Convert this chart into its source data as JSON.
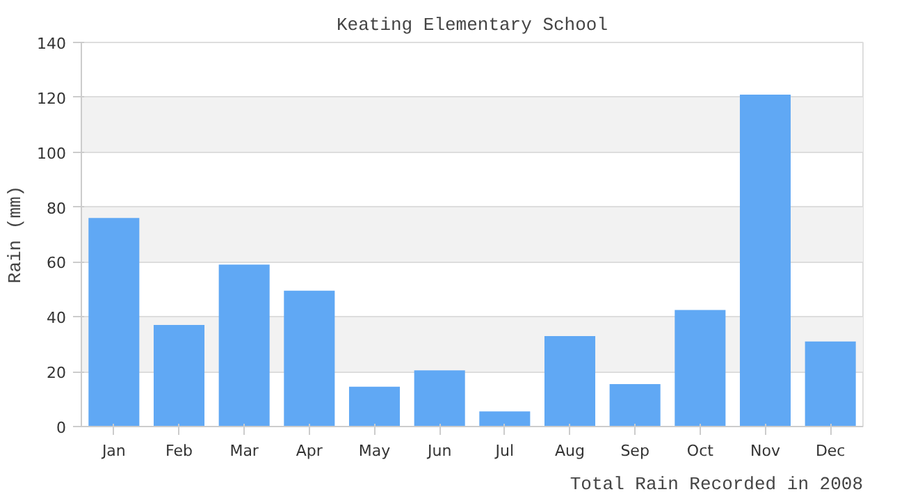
{
  "chart_data": {
    "type": "bar",
    "title": "Keating Elementary School",
    "xlabel": "Total Rain Recorded in 2008",
    "ylabel": "Rain (mm)",
    "categories": [
      "Jan",
      "Feb",
      "Mar",
      "Apr",
      "May",
      "Jun",
      "Jul",
      "Aug",
      "Sep",
      "Oct",
      "Nov",
      "Dec"
    ],
    "values": [
      76,
      37,
      59,
      49.5,
      14.5,
      20.5,
      5.5,
      33,
      15.5,
      42.5,
      121,
      31
    ],
    "color": "#60a8f4",
    "ylim": [
      0,
      140
    ],
    "yticks": [
      0,
      20,
      40,
      60,
      80,
      100,
      120,
      140
    ],
    "grid": "y"
  }
}
